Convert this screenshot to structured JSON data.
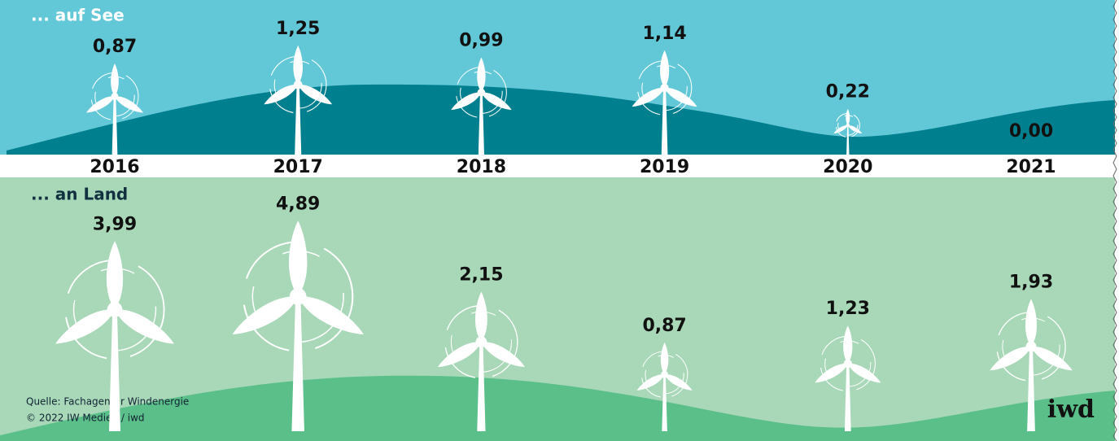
{
  "chart_data": [
    {
      "type": "turbine",
      "title": "... auf See",
      "categories": [
        "2016",
        "2017",
        "2018",
        "2019",
        "2020",
        "2021"
      ],
      "values": [
        0.87,
        1.25,
        0.99,
        1.14,
        0.22,
        0.0
      ],
      "value_labels": [
        "0,87",
        "1,25",
        "0,99",
        "1,14",
        "0,22",
        "0,00"
      ],
      "color": "#ffffff"
    },
    {
      "type": "turbine",
      "title": "... an Land",
      "values": [
        3.99,
        4.89,
        2.15,
        0.87,
        1.23,
        1.93
      ],
      "value_labels": [
        "3,99",
        "4,89",
        "2,15",
        "0,87",
        "1,23",
        "1,93"
      ],
      "color": "#ffffff"
    }
  ],
  "source": "Quelle: Fachagentur Windenergie",
  "copyright": "© 2022 IW Medien / iwd",
  "logo": "iwd"
}
